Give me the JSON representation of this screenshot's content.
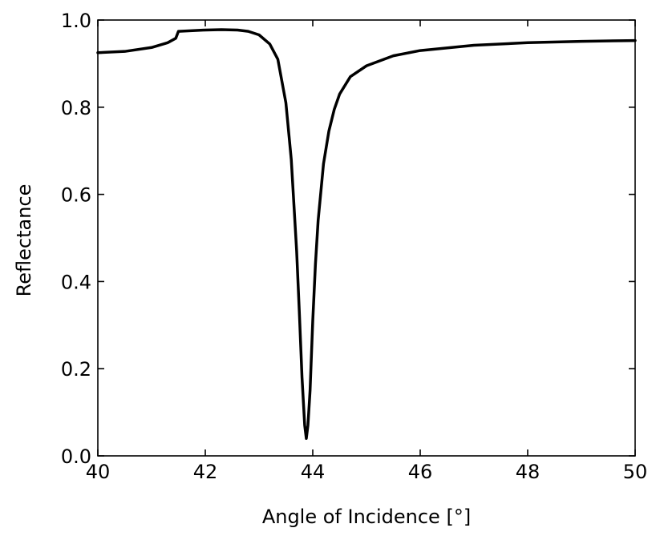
{
  "chart_data": {
    "type": "line",
    "title": "",
    "xlabel": "Angle of Incidence [°]",
    "ylabel": "Reflectance",
    "xlim": [
      40,
      50
    ],
    "ylim": [
      0.0,
      1.0
    ],
    "xticks": [
      40,
      42,
      44,
      46,
      48,
      50
    ],
    "xtick_labels": [
      "40",
      "42",
      "44",
      "46",
      "48",
      "50"
    ],
    "yticks": [
      0.0,
      0.2,
      0.4,
      0.6,
      0.8,
      1.0
    ],
    "ytick_labels": [
      "0.0",
      "0.2",
      "0.4",
      "0.6",
      "0.8",
      "1.0"
    ],
    "grid": false,
    "line_color": "#000000",
    "series": [
      {
        "x": [
          40.0,
          40.5,
          41.0,
          41.3,
          41.45,
          41.5,
          42.0,
          42.3,
          42.6,
          42.8,
          43.0,
          43.2,
          43.35,
          43.5,
          43.6,
          43.7,
          43.75,
          43.8,
          43.85,
          43.88,
          43.91,
          43.95,
          44.0,
          44.05,
          44.1,
          44.2,
          44.3,
          44.4,
          44.5,
          44.7,
          45.0,
          45.5,
          46.0,
          47.0,
          48.0,
          49.0,
          50.0
        ],
        "y": [
          0.925,
          0.928,
          0.937,
          0.948,
          0.958,
          0.974,
          0.977,
          0.978,
          0.977,
          0.974,
          0.966,
          0.945,
          0.91,
          0.81,
          0.68,
          0.47,
          0.33,
          0.18,
          0.07,
          0.04,
          0.07,
          0.15,
          0.31,
          0.44,
          0.54,
          0.67,
          0.745,
          0.795,
          0.83,
          0.87,
          0.895,
          0.918,
          0.93,
          0.942,
          0.948,
          0.951,
          0.953
        ]
      }
    ]
  }
}
